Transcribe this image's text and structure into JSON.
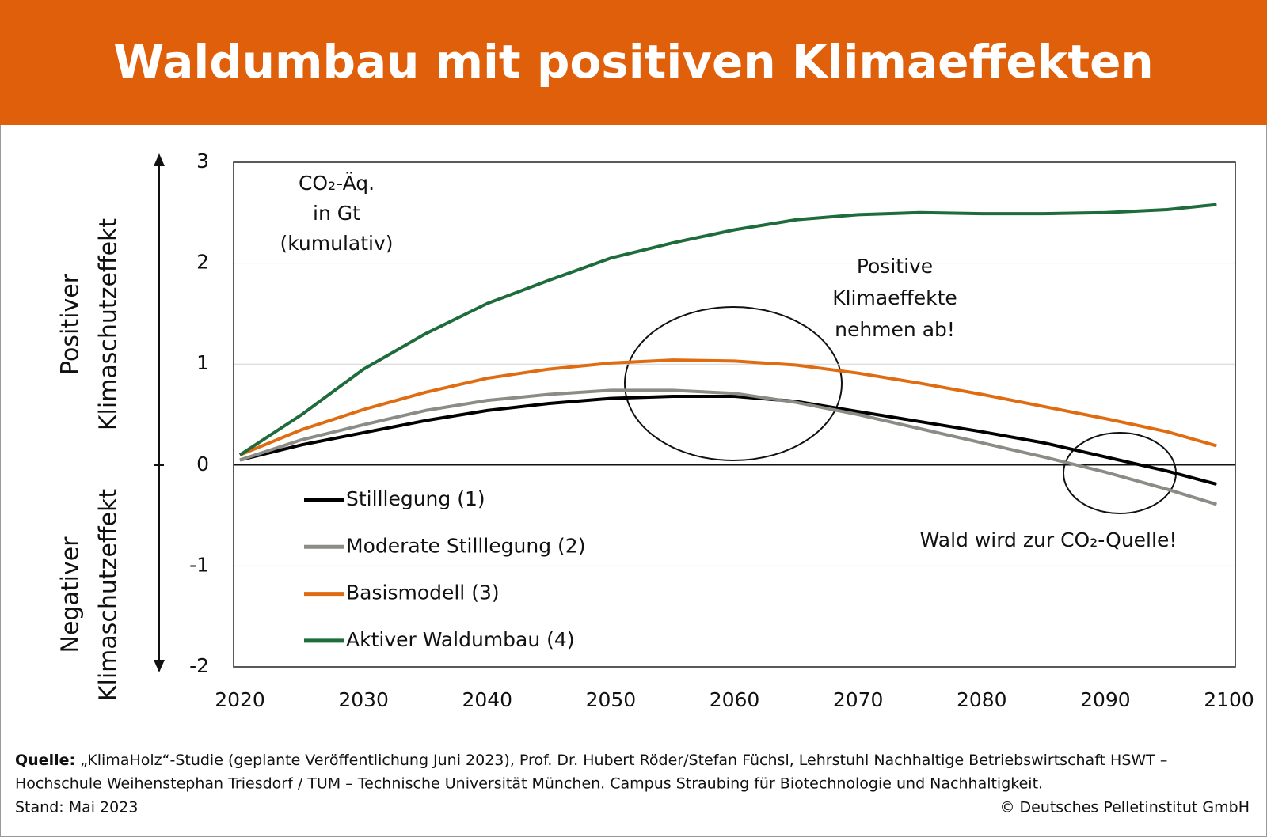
{
  "chart_data": {
    "type": "line",
    "title": "Waldumbau mit positiven Klimaeffekten",
    "y_axis_label": {
      "positive": [
        "Positiver",
        "Klimaschutzeffekt"
      ],
      "negative": [
        "Negativer",
        "Klimaschutzeffekt"
      ]
    },
    "unit_label": [
      "CO₂-Äq.",
      "in Gt",
      "(kumulativ)"
    ],
    "annotations": [
      [
        "Positive",
        "Klimaeffekte",
        "nehmen ab!"
      ],
      [
        "Wald wird zur CO₂-Quelle!"
      ]
    ],
    "x": [
      2020,
      2025,
      2030,
      2035,
      2040,
      2045,
      2050,
      2055,
      2060,
      2065,
      2070,
      2075,
      2080,
      2085,
      2090,
      2095,
      2099
    ],
    "series": [
      {
        "name": "Stilllegung (1)",
        "color": "#000000",
        "values": [
          0.05,
          0.2,
          0.32,
          0.44,
          0.54,
          0.61,
          0.66,
          0.68,
          0.68,
          0.63,
          0.53,
          0.43,
          0.33,
          0.22,
          0.08,
          -0.06,
          -0.19
        ]
      },
      {
        "name": "Moderate Stilllegung (2)",
        "color": "#8c8c86",
        "values": [
          0.05,
          0.25,
          0.4,
          0.54,
          0.64,
          0.7,
          0.74,
          0.74,
          0.71,
          0.62,
          0.5,
          0.36,
          0.22,
          0.08,
          -0.07,
          -0.24,
          -0.39
        ]
      },
      {
        "name": "Basismodell (3)",
        "color": "#e06c12",
        "values": [
          0.1,
          0.35,
          0.55,
          0.72,
          0.86,
          0.95,
          1.01,
          1.04,
          1.03,
          0.99,
          0.91,
          0.81,
          0.7,
          0.58,
          0.46,
          0.33,
          0.19
        ]
      },
      {
        "name": "Aktiver Waldumbau (4)",
        "color": "#1e6b3c",
        "values": [
          0.1,
          0.5,
          0.95,
          1.3,
          1.6,
          1.83,
          2.05,
          2.2,
          2.33,
          2.43,
          2.48,
          2.5,
          2.49,
          2.49,
          2.5,
          2.53,
          2.58
        ]
      }
    ],
    "xlim": [
      2020,
      2100
    ],
    "xticks": [
      2020,
      2030,
      2040,
      2050,
      2060,
      2070,
      2080,
      2090,
      2100
    ],
    "ylim": [
      -2,
      3
    ],
    "yticks": [
      3,
      2,
      1,
      0,
      -1,
      -2
    ],
    "grid": true
  },
  "footer": {
    "source_label": "Quelle:",
    "source_lines": [
      "„KlimaHolz“-Studie (geplante Veröffentlichung Juni 2023), Prof. Dr. Hubert Röder/Stefan Füchsl, Lehrstuhl Nachhaltige Betriebswirtschaft HSWT –",
      "Hochschule Weihenstephan Triesdorf / TUM – Technische Universität München. Campus Straubing für Biotechnologie und Nachhaltigkeit."
    ],
    "date": "Stand: Mai 2023",
    "copyright": "© Deutsches Pelletinstitut GmbH"
  }
}
